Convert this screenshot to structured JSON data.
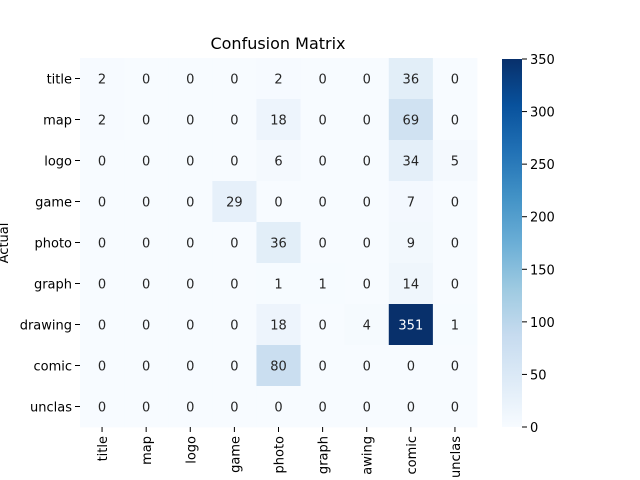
{
  "chart_data": {
    "type": "heatmap",
    "title": "Confusion Matrix",
    "ylabel": "Actual",
    "xlabel": "",
    "row_labels": [
      "title",
      "map",
      "logo",
      "game",
      "photo",
      "graph",
      "drawing",
      "comic",
      "unclas"
    ],
    "col_labels": [
      "title",
      "map",
      "logo",
      "game",
      "photo",
      "graph",
      "awing",
      "comic",
      "unclas"
    ],
    "values": [
      [
        2,
        0,
        0,
        0,
        2,
        0,
        0,
        36,
        0
      ],
      [
        2,
        0,
        0,
        0,
        18,
        0,
        0,
        69,
        0
      ],
      [
        0,
        0,
        0,
        0,
        6,
        0,
        0,
        34,
        5
      ],
      [
        0,
        0,
        0,
        29,
        0,
        0,
        0,
        7,
        0
      ],
      [
        0,
        0,
        0,
        0,
        36,
        0,
        0,
        9,
        0
      ],
      [
        0,
        0,
        0,
        0,
        1,
        1,
        0,
        14,
        0
      ],
      [
        0,
        0,
        0,
        0,
        18,
        0,
        4,
        351,
        1
      ],
      [
        0,
        0,
        0,
        0,
        80,
        0,
        0,
        0,
        0
      ],
      [
        0,
        0,
        0,
        0,
        0,
        0,
        0,
        0,
        0
      ]
    ],
    "colorbar": {
      "min": 0,
      "max": 350,
      "ticks": [
        0,
        50,
        100,
        150,
        200,
        250,
        300,
        350
      ],
      "colormap": "Blues"
    }
  }
}
